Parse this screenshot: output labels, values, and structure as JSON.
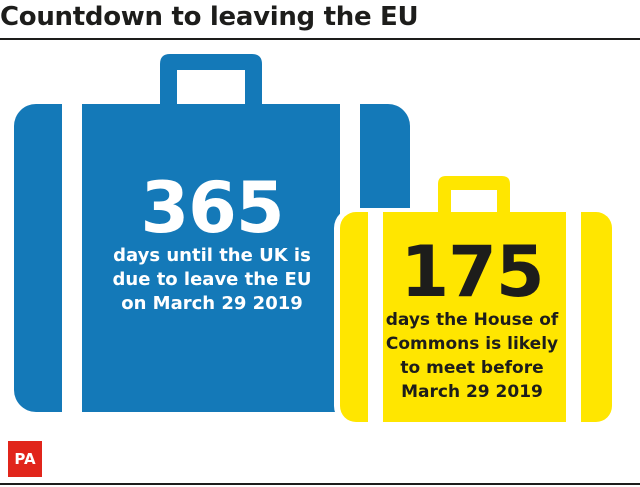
{
  "title": "Countdown to leaving the EU",
  "colors": {
    "blue_case": "#1479b8",
    "yellow_case": "#ffe600",
    "stripe": "#ffffff",
    "logo_red": "#e1251b",
    "ink": "#1d1d1b"
  },
  "blue_case": {
    "number": "365",
    "caption_lines": [
      "days until the UK is",
      "due to leave the EU",
      "on March 29 2019"
    ]
  },
  "yellow_case": {
    "number": "175",
    "caption_lines": [
      "days the House of",
      "Commons is likely",
      "to meet before",
      "March 29 2019"
    ]
  },
  "logo": {
    "text": "PA"
  }
}
